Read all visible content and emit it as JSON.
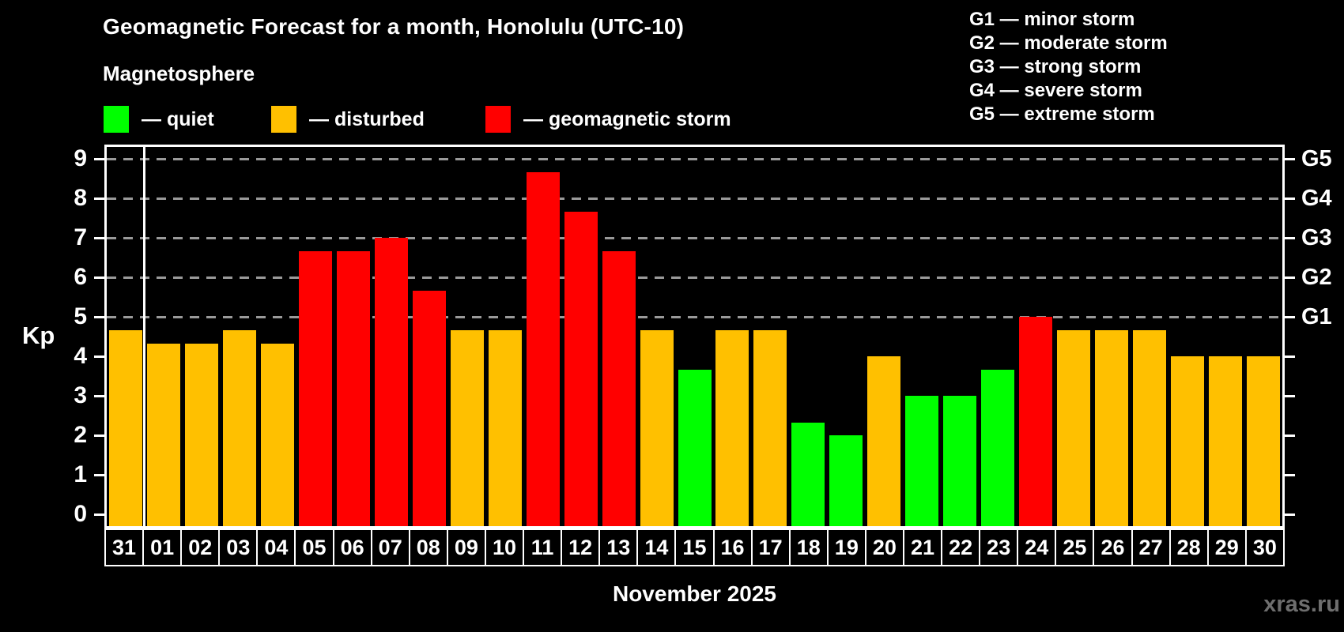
{
  "page": {
    "background": "#000000"
  },
  "header": {
    "title": "Geomagnetic Forecast for a month, Honolulu (UTC-10)",
    "subtitle": "Magnetosphere"
  },
  "legend": {
    "items": [
      {
        "name": "quiet",
        "swatch_color": "#00ff00",
        "label": "— quiet"
      },
      {
        "name": "disturbed",
        "swatch_color": "#ffc000",
        "label": "— disturbed"
      },
      {
        "name": "storm",
        "swatch_color": "#ff0000",
        "label": "— geomagnetic storm"
      }
    ]
  },
  "storm_scale": {
    "items": [
      {
        "code": "G1",
        "label": "G1 — minor storm"
      },
      {
        "code": "G2",
        "label": "G2 — moderate storm"
      },
      {
        "code": "G3",
        "label": "G3 — strong storm"
      },
      {
        "code": "G4",
        "label": "G4 — severe storm"
      },
      {
        "code": "G5",
        "label": "G5 — extreme storm"
      }
    ]
  },
  "footer": {
    "month_label": "November 2025",
    "watermark": "xras.ru"
  },
  "chart_data": {
    "type": "bar",
    "title": "Geomagnetic Forecast for a month, Honolulu (UTC-10)",
    "subtitle": "Magnetosphere",
    "xlabel": "November 2025",
    "ylabel": "Kp",
    "ylim": [
      0,
      9
    ],
    "y_ticks": [
      0,
      1,
      2,
      3,
      4,
      5,
      6,
      7,
      8,
      9
    ],
    "gridlines_at_kp": [
      5,
      6,
      7,
      8,
      9
    ],
    "grid": "dashed horizontal lines at storm levels G1-G5",
    "legend_position": "top-left",
    "right_axis_labels": [
      {
        "kp": 5,
        "text": "G1"
      },
      {
        "kp": 6,
        "text": "G2"
      },
      {
        "kp": 7,
        "text": "G3"
      },
      {
        "kp": 8,
        "text": "G4"
      },
      {
        "kp": 9,
        "text": "G5"
      }
    ],
    "month_separator_after_category": "31",
    "status_colors": {
      "quiet": "#00ff00",
      "disturbed": "#ffc000",
      "storm": "#ff0000"
    },
    "categories": [
      "31",
      "01",
      "02",
      "03",
      "04",
      "05",
      "06",
      "07",
      "08",
      "09",
      "10",
      "11",
      "12",
      "13",
      "14",
      "15",
      "16",
      "17",
      "18",
      "19",
      "20",
      "21",
      "22",
      "23",
      "24",
      "25",
      "26",
      "27",
      "28",
      "29",
      "30"
    ],
    "series": [
      {
        "name": "Kp forecast",
        "values": [
          4.67,
          4.33,
          4.33,
          4.67,
          4.33,
          6.67,
          6.67,
          7.0,
          5.67,
          4.67,
          4.67,
          8.67,
          7.67,
          6.67,
          4.67,
          3.67,
          4.67,
          4.67,
          2.33,
          2.0,
          4.0,
          3.0,
          3.0,
          3.67,
          5.0,
          4.67,
          4.67,
          4.67,
          4.0,
          4.0,
          4.0
        ]
      }
    ],
    "statuses": [
      "disturbed",
      "disturbed",
      "disturbed",
      "disturbed",
      "disturbed",
      "storm",
      "storm",
      "storm",
      "storm",
      "disturbed",
      "disturbed",
      "storm",
      "storm",
      "storm",
      "disturbed",
      "quiet",
      "disturbed",
      "disturbed",
      "quiet",
      "quiet",
      "disturbed",
      "quiet",
      "quiet",
      "quiet",
      "storm",
      "disturbed",
      "disturbed",
      "disturbed",
      "disturbed",
      "disturbed",
      "disturbed"
    ]
  }
}
